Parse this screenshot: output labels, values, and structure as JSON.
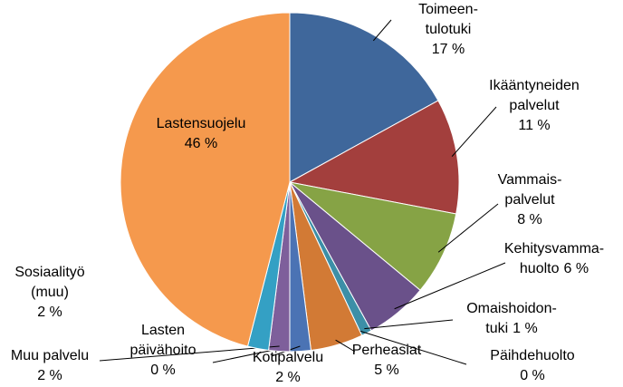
{
  "chart_data": {
    "type": "pie",
    "categories": [
      "Toimeen-\ntulotuki",
      "Ikääntyneiden\npalvelut",
      "Vammais-\npalvelut",
      "Kehitysvamma-\nhuolto",
      "Omaishoidon-\ntuki",
      "Päihdehuolto",
      "Perheasiat",
      "Kotipalvelu",
      "Lasten\npäivähoito",
      "Muu palvelu",
      "Sosiaalityö\n(muu)",
      "Lastensuojelu"
    ],
    "values": [
      17,
      11,
      8,
      6,
      1,
      0,
      5,
      2,
      0,
      2,
      2,
      46
    ],
    "value_labels": [
      "17 %",
      "11 %",
      "8 %",
      "6 %",
      "1 %",
      "0 %",
      "5 %",
      "2 %",
      "0 %",
      "2 %",
      "2 %",
      "46 %"
    ],
    "colors": [
      "#3f679b",
      "#a33f3d",
      "#86a345",
      "#6a518a",
      "#3c8fa7",
      "#c0504d",
      "#d27a35",
      "#4b73b4",
      "#a9413f",
      "#7e5f9b",
      "#34a0c4",
      "#f5994d"
    ]
  }
}
